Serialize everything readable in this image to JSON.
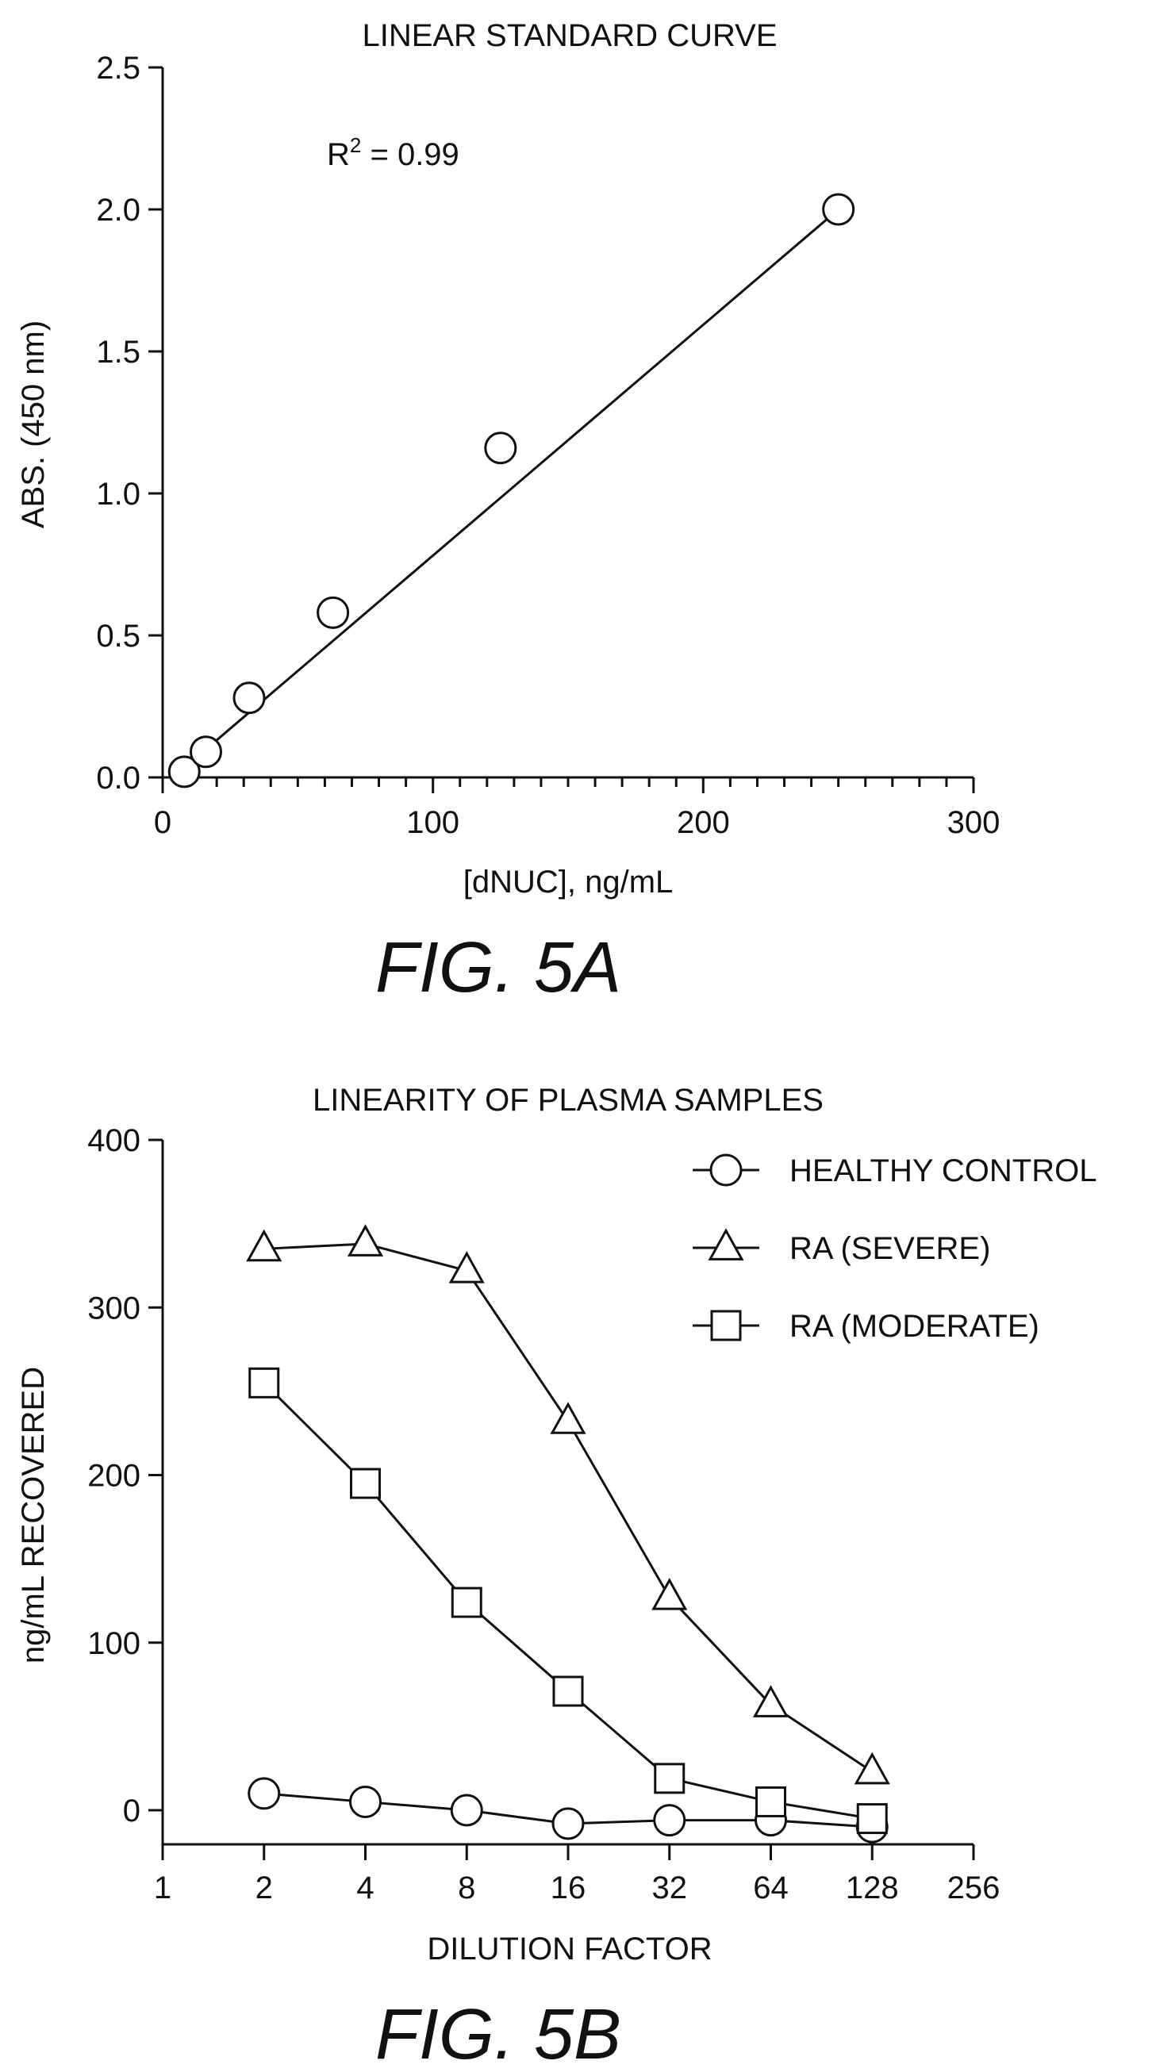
{
  "chart_data": [
    {
      "type": "scatter",
      "title": "LINEAR STANDARD CURVE",
      "xlabel": "[dNUC], ng/mL",
      "ylabel": "ABS. (450 nm)",
      "xlim": [
        0,
        300
      ],
      "ylim": [
        0,
        2.5
      ],
      "xticks": [
        "0",
        "100",
        "200",
        "300"
      ],
      "yticks": [
        "0.0",
        "0.5",
        "1.0",
        "1.5",
        "2.0",
        "2.5"
      ],
      "annotation": "R² = 0.99",
      "series": [
        {
          "points": [
            [
              8,
              0.02
            ],
            [
              16,
              0.09
            ],
            [
              32,
              0.28
            ],
            [
              63,
              0.58
            ],
            [
              125,
              1.16
            ],
            [
              250,
              2.0
            ]
          ]
        }
      ],
      "fit_line": {
        "from": [
          10,
          0.05
        ],
        "to": [
          250,
          2.0
        ]
      },
      "figure_label": "FIG. 5A"
    },
    {
      "type": "line",
      "title": "LINEARITY OF PLASMA SAMPLES",
      "xlabel": "DILUTION FACTOR",
      "ylabel": "ng/mL RECOVERED",
      "x_scale": "log2",
      "xlim": [
        1,
        256
      ],
      "ylim": [
        -20,
        400
      ],
      "xticks": [
        "1",
        "2",
        "4",
        "8",
        "16",
        "32",
        "64",
        "128",
        "256"
      ],
      "yticks": [
        "0",
        "100",
        "200",
        "300",
        "400"
      ],
      "x": [
        2,
        4,
        8,
        16,
        32,
        64,
        128
      ],
      "series": [
        {
          "name": "HEALTHY CONTROL",
          "marker": "circle",
          "values": [
            10,
            5,
            0,
            -8,
            -6,
            -6,
            -10
          ]
        },
        {
          "name": "RA (SEVERE)",
          "marker": "triangle",
          "values": [
            335,
            338,
            322,
            232,
            127,
            63,
            23
          ]
        },
        {
          "name": "RA (MODERATE)",
          "marker": "square",
          "values": [
            255,
            195,
            124,
            71,
            19,
            5,
            -5
          ]
        }
      ],
      "legend_position": "top-right",
      "figure_label": "FIG. 5B"
    }
  ]
}
